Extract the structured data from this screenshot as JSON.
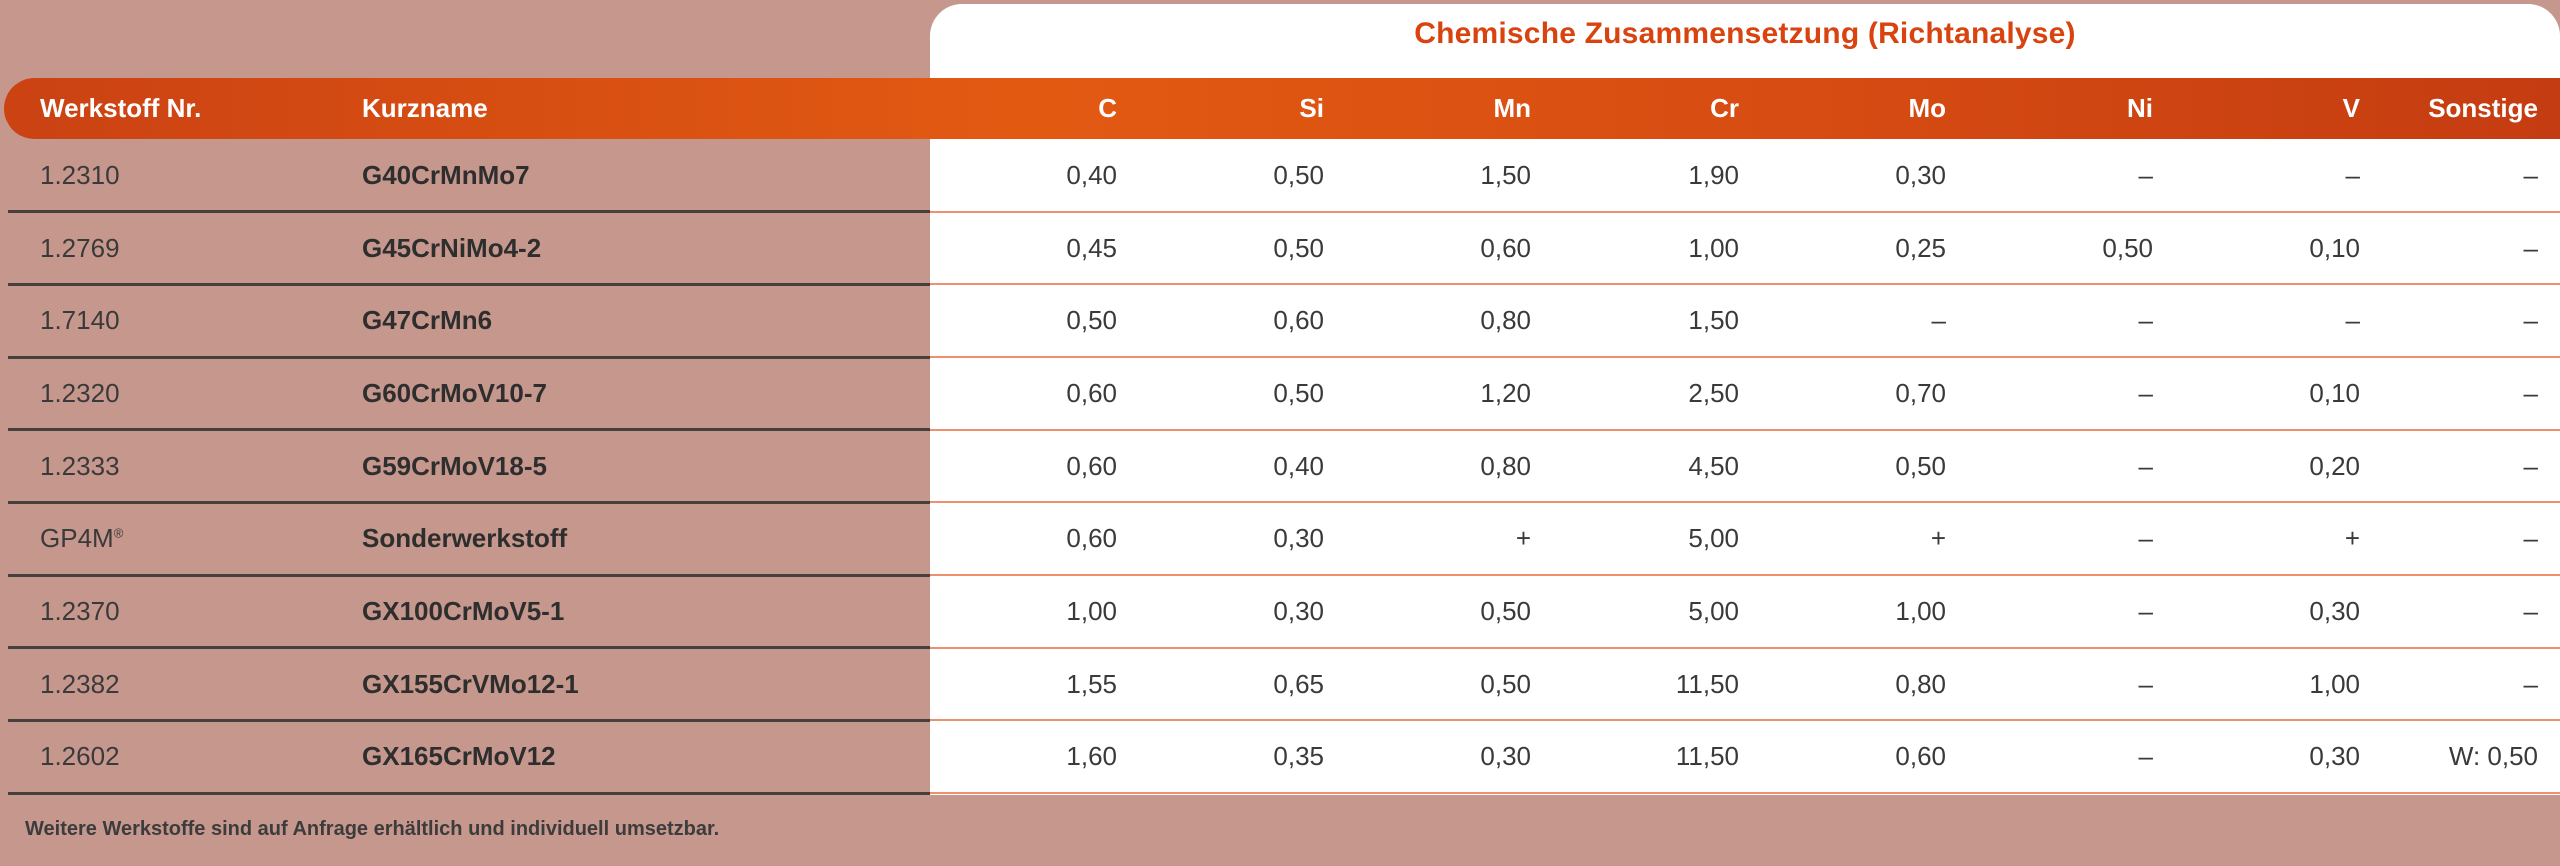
{
  "title": "Chemische Zusammensetzung (Richtanalyse)",
  "footer_note": "Weitere Werkstoffe sind auf Anfrage erhältlich und individuell umsetzbar.",
  "colors": {
    "page_bg": "#c6978d",
    "card_bg": "#ffffff",
    "title_text": "#d9430f",
    "header_text": "#ffffff",
    "body_text": "#3a3a3a",
    "separator_light": "#ef8f6e",
    "separator_dark": "#46403c",
    "header_gradient_left": "#cb4213",
    "header_gradient_mid": "#e25a12",
    "header_gradient_right": "#c43c11"
  },
  "chart_data": {
    "type": "table",
    "title": "Chemische Zusammensetzung (Richtanalyse)",
    "columns": [
      "Werkstoff Nr.",
      "Kurzname",
      "C",
      "Si",
      "Mn",
      "Cr",
      "Mo",
      "Ni",
      "V",
      "Sonstige"
    ],
    "rows": [
      {
        "nr": "1.2310",
        "name": "G40CrMnMo7",
        "values": [
          "0,40",
          "0,50",
          "1,50",
          "1,90",
          "0,30",
          "–",
          "–",
          "–"
        ]
      },
      {
        "nr": "1.2769",
        "name": "G45CrNiMo4-2",
        "values": [
          "0,45",
          "0,50",
          "0,60",
          "1,00",
          "0,25",
          "0,50",
          "0,10",
          "–"
        ]
      },
      {
        "nr": "1.7140",
        "name": "G47CrMn6",
        "values": [
          "0,50",
          "0,60",
          "0,80",
          "1,50",
          "–",
          "–",
          "–",
          "–"
        ]
      },
      {
        "nr": "1.2320",
        "name": "G60CrMoV10-7",
        "values": [
          "0,60",
          "0,50",
          "1,20",
          "2,50",
          "0,70",
          "–",
          "0,10",
          "–"
        ]
      },
      {
        "nr": "1.2333",
        "name": "G59CrMoV18-5",
        "values": [
          "0,60",
          "0,40",
          "0,80",
          "4,50",
          "0,50",
          "–",
          "0,20",
          "–"
        ]
      },
      {
        "nr": "GP4M®",
        "name": "Sonderwerkstoff",
        "values": [
          "0,60",
          "0,30",
          "+",
          "5,00",
          "+",
          "–",
          "+",
          "–"
        ]
      },
      {
        "nr": "1.2370",
        "name": "GX100CrMoV5-1",
        "values": [
          "1,00",
          "0,30",
          "0,50",
          "5,00",
          "1,00",
          "–",
          "0,30",
          "–"
        ]
      },
      {
        "nr": "1.2382",
        "name": "GX155CrVMo12-1",
        "values": [
          "1,55",
          "0,65",
          "0,50",
          "11,50",
          "0,80",
          "–",
          "1,00",
          "–"
        ]
      },
      {
        "nr": "1.2602",
        "name": "GX165CrMoV12",
        "values": [
          "1,60",
          "0,35",
          "0,30",
          "11,50",
          "0,60",
          "–",
          "0,30",
          "W: 0,50"
        ]
      }
    ]
  }
}
